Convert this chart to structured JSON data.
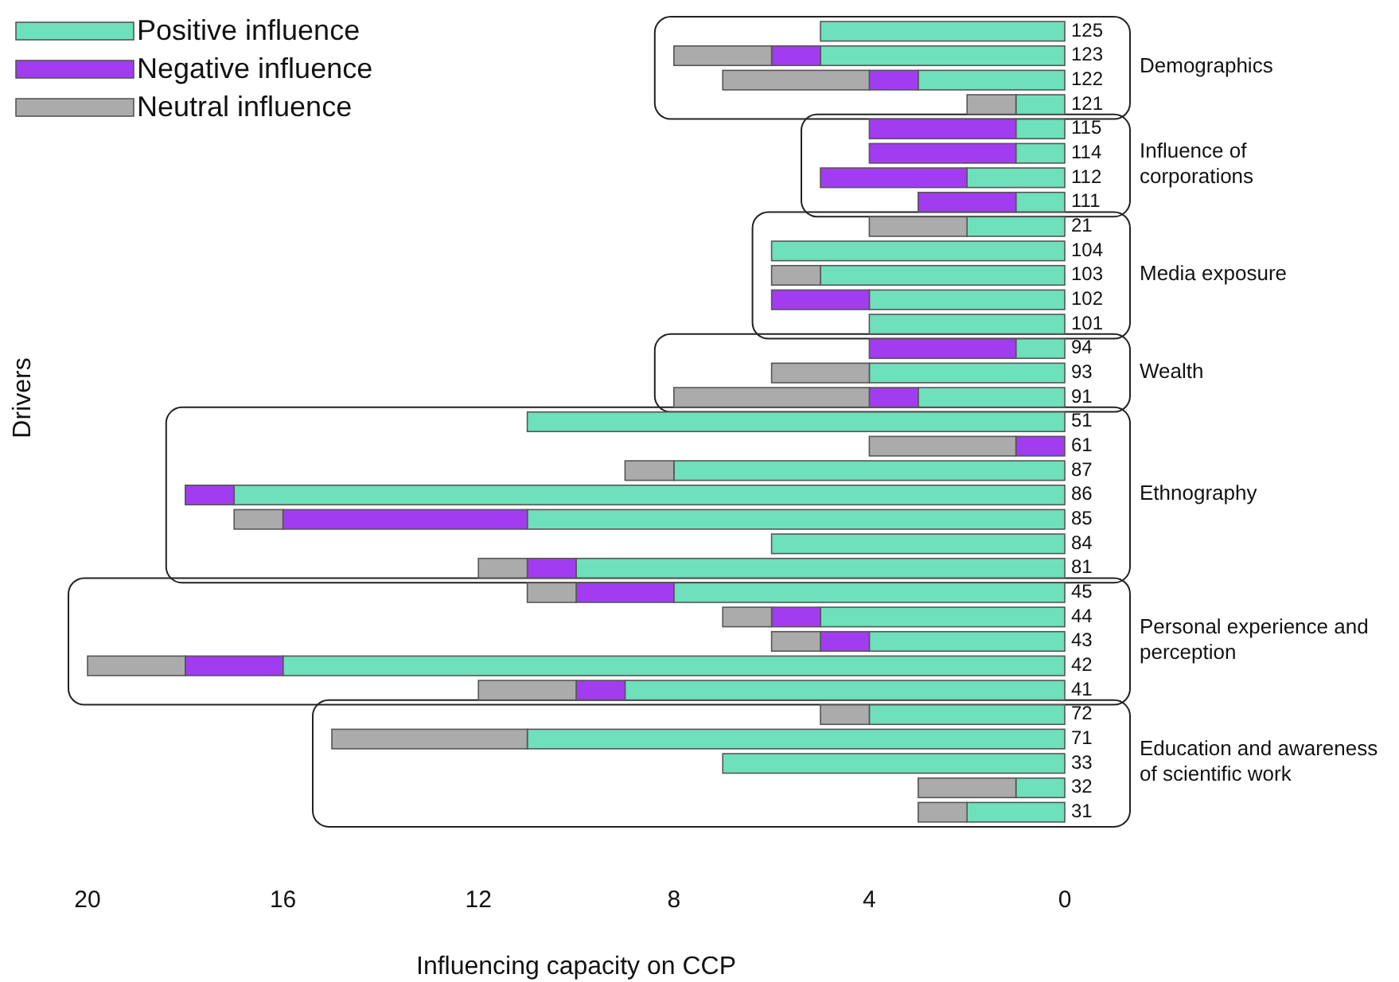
{
  "chart_data": {
    "type": "bar",
    "orientation": "horizontal",
    "stacked": true,
    "xlabel": "Influencing capacity on CCP",
    "ylabel": "Drivers",
    "categories": [
      "125",
      "123",
      "122",
      "121",
      "115",
      "114",
      "112",
      "111",
      "21",
      "104",
      "103",
      "102",
      "101",
      "94",
      "93",
      "91",
      "51",
      "61",
      "87",
      "86",
      "85",
      "84",
      "81",
      "45",
      "44",
      "43",
      "42",
      "41",
      "72",
      "71",
      "33",
      "32",
      "31"
    ],
    "series": [
      {
        "name": "Positive influence",
        "color": "#6ee0bc",
        "values": [
          5,
          5,
          3,
          1,
          1,
          1,
          2,
          1,
          2,
          6,
          5,
          4,
          4,
          1,
          4,
          3,
          11,
          0,
          8,
          17,
          11,
          6,
          10,
          8,
          5,
          4,
          16,
          9,
          4,
          11,
          7,
          1,
          2
        ]
      },
      {
        "name": "Negative influence",
        "color": "#a23cf0",
        "values": [
          0,
          1,
          1,
          0,
          3,
          3,
          3,
          2,
          0,
          0,
          0,
          2,
          0,
          3,
          0,
          1,
          0,
          1,
          0,
          1,
          5,
          0,
          1,
          2,
          1,
          1,
          2,
          1,
          0,
          0,
          0,
          0,
          0
        ]
      },
      {
        "name": "Neutral influence",
        "color": "#ababab",
        "values": [
          0,
          2,
          3,
          1,
          0,
          0,
          0,
          0,
          2,
          0,
          1,
          0,
          0,
          0,
          2,
          4,
          0,
          3,
          1,
          0,
          1,
          0,
          1,
          1,
          1,
          1,
          2,
          2,
          1,
          4,
          0,
          2,
          1
        ]
      }
    ],
    "xlim": [
      20,
      0
    ],
    "xticks": [
      20,
      16,
      12,
      8,
      4,
      0
    ],
    "legend": "top left",
    "grid": false,
    "annotations": [
      "Demographics",
      "Influence of corporations",
      "Media exposure",
      "Wealth",
      "Ethnography",
      "Personal experience and perception",
      "Education and awareness of scientific work"
    ]
  }
}
